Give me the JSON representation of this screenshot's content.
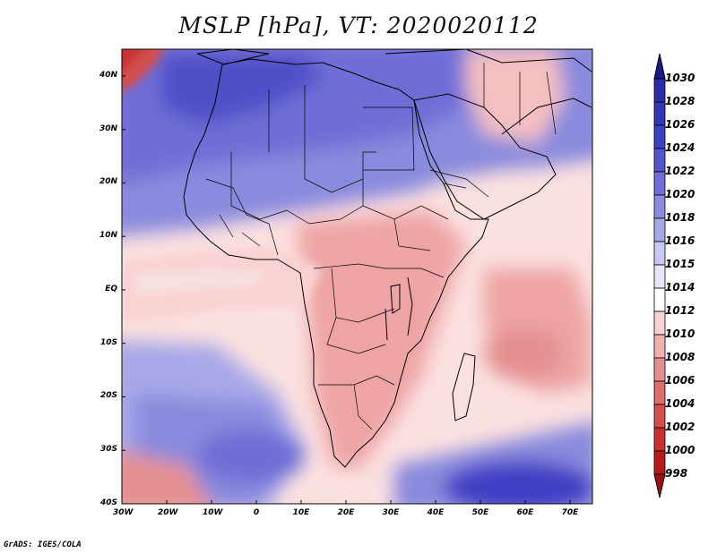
{
  "title": "MSLP [hPa], VT: 2020020112",
  "credit": "GrADS: IGES/COLA",
  "x_axis_labels": [
    "30W",
    "20W",
    "10W",
    "0",
    "10E",
    "20E",
    "30E",
    "40E",
    "50E",
    "60E",
    "70E"
  ],
  "y_axis_labels": [
    "40N",
    "30N",
    "20N",
    "10N",
    "EQ",
    "10S",
    "20S",
    "30S",
    "40S"
  ],
  "colorbar": {
    "levels": [
      "1030",
      "1028",
      "1026",
      "1024",
      "1022",
      "1020",
      "1018",
      "1016",
      "1015",
      "1014",
      "1012",
      "1010",
      "1008",
      "1006",
      "1004",
      "1002",
      "1000",
      "998"
    ],
    "colors": [
      "#262699",
      "#2b2ba8",
      "#3434b8",
      "#4040c4",
      "#5555cc",
      "#6e6ed6",
      "#8a8ade",
      "#a8a8e8",
      "#c8c8f2",
      "#e6e6fa",
      "#ffffff",
      "#fad2d2",
      "#f0b0b0",
      "#e49090",
      "#dc6e6e",
      "#d44e4e",
      "#c83030",
      "#b81a1a",
      "#a01010"
    ]
  },
  "map": {
    "projection": "lat-lon",
    "lon_range": [
      -30,
      75
    ],
    "lat_range": [
      -40,
      45
    ],
    "variable": "MSLP",
    "units": "hPa",
    "valid_time": "2020020112"
  }
}
